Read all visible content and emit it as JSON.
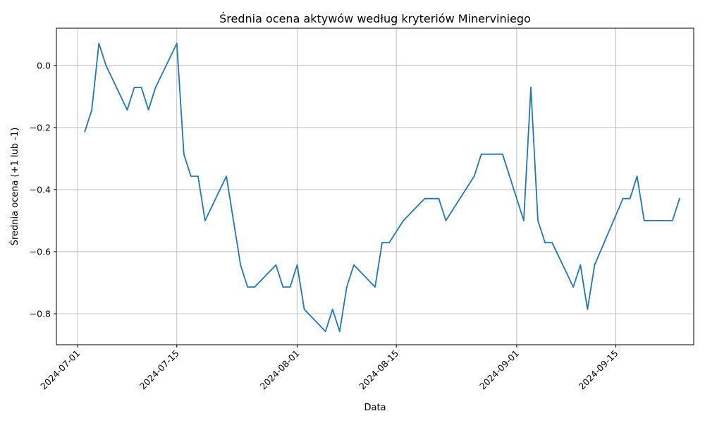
{
  "chart_data": {
    "type": "line",
    "title": "Średnia ocena aktywów według kryteriów Minerviniego",
    "xlabel": "Data",
    "ylabel": "Średnia ocena (+1 lub -1)",
    "grid": true,
    "color": "#1f77b4",
    "x_range": [
      "2024-06-28",
      "2024-09-26"
    ],
    "ylim": [
      -0.9,
      0.12
    ],
    "x_ticks": [
      "2024-07-01",
      "2024-07-15",
      "2024-08-01",
      "2024-08-15",
      "2024-09-01",
      "2024-09-15"
    ],
    "y_ticks": [
      0.0,
      -0.2,
      -0.4,
      -0.6,
      -0.8
    ],
    "y_tick_labels": [
      "0.0",
      "−0.2",
      "−0.4",
      "−0.6",
      "−0.8"
    ],
    "series": [
      {
        "x": [
          "2024-07-02",
          "2024-07-03",
          "2024-07-04",
          "2024-07-05",
          "2024-07-08",
          "2024-07-09",
          "2024-07-10",
          "2024-07-11",
          "2024-07-12",
          "2024-07-15",
          "2024-07-16",
          "2024-07-17",
          "2024-07-18",
          "2024-07-19",
          "2024-07-22",
          "2024-07-24",
          "2024-07-25",
          "2024-07-26",
          "2024-07-29",
          "2024-07-30",
          "2024-07-31",
          "2024-08-01",
          "2024-08-02",
          "2024-08-05",
          "2024-08-06",
          "2024-08-07",
          "2024-08-08",
          "2024-08-09",
          "2024-08-12",
          "2024-08-13",
          "2024-08-14",
          "2024-08-16",
          "2024-08-19",
          "2024-08-20",
          "2024-08-21",
          "2024-08-22",
          "2024-08-26",
          "2024-08-27",
          "2024-08-30",
          "2024-09-02",
          "2024-09-03",
          "2024-09-04",
          "2024-09-05",
          "2024-09-06",
          "2024-09-09",
          "2024-09-10",
          "2024-09-11",
          "2024-09-12",
          "2024-09-16",
          "2024-09-17",
          "2024-09-18",
          "2024-09-19",
          "2024-09-20",
          "2024-09-23",
          "2024-09-24"
        ],
        "values": [
          -0.214,
          -0.143,
          0.071,
          0.0,
          -0.143,
          -0.071,
          -0.071,
          -0.143,
          -0.071,
          0.071,
          -0.286,
          -0.357,
          -0.357,
          -0.5,
          -0.357,
          -0.643,
          -0.714,
          -0.714,
          -0.643,
          -0.714,
          -0.714,
          -0.643,
          -0.786,
          -0.857,
          -0.786,
          -0.857,
          -0.714,
          -0.643,
          -0.714,
          -0.571,
          -0.571,
          -0.5,
          -0.429,
          -0.429,
          -0.429,
          -0.5,
          -0.357,
          -0.286,
          -0.286,
          -0.5,
          -0.071,
          -0.5,
          -0.571,
          -0.571,
          -0.714,
          -0.643,
          -0.786,
          -0.643,
          -0.429,
          -0.429,
          -0.357,
          -0.5,
          -0.5,
          -0.5,
          -0.429
        ]
      }
    ]
  }
}
